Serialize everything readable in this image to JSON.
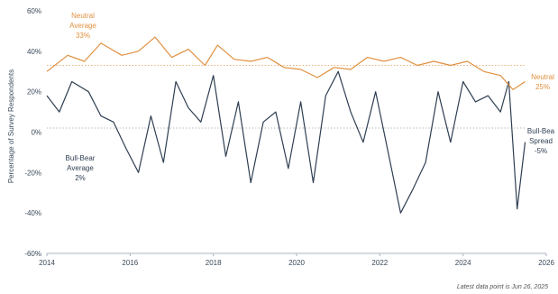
{
  "chart_data": {
    "type": "line",
    "xlim": [
      2014,
      2026
    ],
    "ylim": [
      -60,
      60
    ],
    "x_ticks": [
      "2014",
      "2016",
      "2018",
      "2020",
      "2022",
      "2024",
      "2026"
    ],
    "y_ticks": [
      "60%",
      "40%",
      "20%",
      "0%",
      "-20%",
      "-40%",
      "-60%"
    ],
    "ylabel": "Percentage of Survey Respondents",
    "footnote": "Latest data point is Jun 26, 2025",
    "colors": {
      "neutral": "#e09040",
      "spread": "#2f3f52",
      "reference": "#999999"
    },
    "series": [
      {
        "key": "neutral",
        "x": [
          2014.0,
          2014.5,
          2014.9,
          2015.3,
          2015.8,
          2016.2,
          2016.6,
          2017.0,
          2017.4,
          2017.8,
          2018.1,
          2018.5,
          2018.9,
          2019.3,
          2019.7,
          2020.1,
          2020.5,
          2020.9,
          2021.3,
          2021.7,
          2022.1,
          2022.5,
          2022.9,
          2023.3,
          2023.7,
          2024.1,
          2024.5,
          2024.9,
          2025.2,
          2025.49
        ],
        "values": [
          30,
          38,
          35,
          44,
          38,
          40,
          47,
          37,
          41,
          33,
          43,
          36,
          35,
          37,
          32,
          31,
          27,
          32,
          31,
          37,
          35,
          37,
          33,
          35,
          33,
          35,
          30,
          28,
          21,
          25
        ]
      },
      {
        "key": "spread",
        "x": [
          2014.0,
          2014.3,
          2014.6,
          2015.0,
          2015.3,
          2015.6,
          2015.9,
          2016.2,
          2016.5,
          2016.8,
          2017.1,
          2017.4,
          2017.7,
          2018.0,
          2018.3,
          2018.6,
          2018.9,
          2019.2,
          2019.5,
          2019.8,
          2020.1,
          2020.4,
          2020.7,
          2021.0,
          2021.3,
          2021.6,
          2021.9,
          2022.2,
          2022.5,
          2022.8,
          2023.1,
          2023.4,
          2023.7,
          2024.0,
          2024.3,
          2024.6,
          2024.9,
          2025.1,
          2025.3,
          2025.49
        ],
        "values": [
          18,
          10,
          25,
          20,
          8,
          5,
          -8,
          -20,
          8,
          -15,
          25,
          12,
          5,
          28,
          -12,
          15,
          -25,
          5,
          10,
          -18,
          15,
          -25,
          18,
          30,
          10,
          -5,
          20,
          -10,
          -40,
          -28,
          -15,
          20,
          -5,
          25,
          15,
          18,
          10,
          25,
          -38,
          -5
        ]
      }
    ],
    "reference_lines": [
      {
        "key": "neutral",
        "value": 33
      },
      {
        "key": "spread",
        "value": 2
      }
    ],
    "annotations": {
      "neutral_avg": {
        "line1": "Neutral",
        "line2": "Average",
        "line3": "33%"
      },
      "neutral_latest": {
        "line1": "Neutral",
        "line2": "25%"
      },
      "spread_avg": {
        "line1": "Bull-Bear",
        "line2": "Average",
        "line3": "2%"
      },
      "spread_latest": {
        "line1": "Bull-Bea",
        "line2": "Spread",
        "line3": "-5%"
      }
    }
  }
}
